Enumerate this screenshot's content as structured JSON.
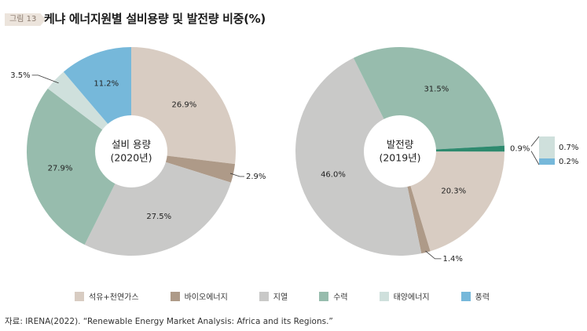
{
  "figure_label": "그림 13",
  "title": "케냐 에너지원별 설비용량 및 발전량 비중(%)",
  "source": "자료: IRENA(2022). “Renewable Energy Market Analysis: Africa and its Regions.”",
  "legend": [
    {
      "label": "석유+천연가스",
      "color": "#d8ccc2"
    },
    {
      "label": "바이오에너지",
      "color": "#ae9a88"
    },
    {
      "label": "지열",
      "color": "#c9c9c8"
    },
    {
      "label": "수력",
      "color": "#97bcad"
    },
    {
      "label": "태양에너지",
      "color": "#cfe0dc"
    },
    {
      "label": "풍력",
      "color": "#76b8da"
    }
  ],
  "chart_data": [
    {
      "type": "pie",
      "title_line1": "설비 용량",
      "title_line2": "(2020년)",
      "slices": [
        {
          "label": "석유+천연가스",
          "value": 26.9,
          "display": "26.9%",
          "color": "#d8ccc2"
        },
        {
          "label": "바이오에너지",
          "value": 2.9,
          "display": "2.9%",
          "color": "#ae9a88"
        },
        {
          "label": "지열",
          "value": 27.5,
          "display": "27.5%",
          "color": "#c9c9c8"
        },
        {
          "label": "수력",
          "value": 27.9,
          "display": "27.9%",
          "color": "#97bcad"
        },
        {
          "label": "태양에너지",
          "value": 3.5,
          "display": "3.5%",
          "color": "#cfe0dc"
        },
        {
          "label": "풍력",
          "value": 11.2,
          "display": "11.2%",
          "color": "#76b8da"
        }
      ]
    },
    {
      "type": "pie",
      "title_line1": "발전량",
      "title_line2": "(2019년)",
      "slices": [
        {
          "label": "풍력",
          "value": 0.2,
          "display": "0.2%",
          "color": "#76b8da"
        },
        {
          "label": "태양에너지",
          "value": 0.7,
          "display": "0.7%",
          "color": "#cfe0dc"
        },
        {
          "label": "석유+천연가스",
          "value": 20.3,
          "display": "20.3%",
          "color": "#d8ccc2"
        },
        {
          "label": "바이오에너지",
          "value": 1.4,
          "display": "1.4%",
          "color": "#ae9a88"
        },
        {
          "label": "지열",
          "value": 46.0,
          "display": "46.0%",
          "color": "#c9c9c8"
        },
        {
          "label": "수력",
          "value": 31.5,
          "display": "31.5%",
          "color": "#97bcad"
        }
      ],
      "combined_label": "0.9%",
      "combined_band_color": "#2e8a6e"
    }
  ]
}
